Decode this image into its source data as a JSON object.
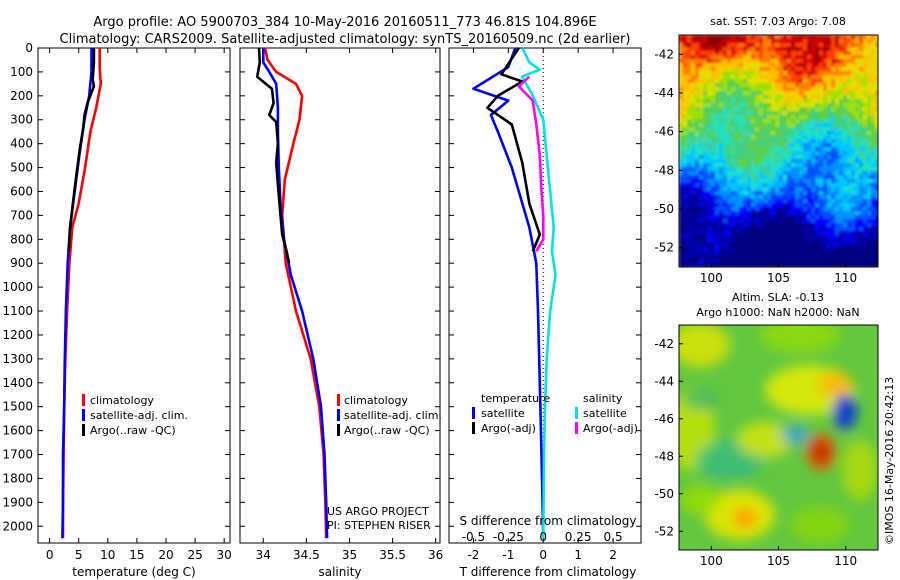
{
  "titles": {
    "line1": "Argo profile: AO 5900703_384 10-May-2016 20160511_773 46.81S 104.896E",
    "line2": "Climatology: CARS2009. Satellite-adjusted climatology: synTS_20160509.nc (2d earlier)"
  },
  "footer_vertical": "©IMOS 16-May-2016 20:42:13",
  "credit": {
    "line1": "US ARGO PROJECT",
    "line2": "PI: STEPHEN RISER"
  },
  "colors": {
    "climatology": "#ff0000",
    "satellite": "#0000ff",
    "argo": "#000000",
    "sat_salinity": "#00e6e6",
    "argo_salinity": "#ff00ff"
  },
  "chart_data": [
    {
      "type": "line",
      "id": "temperature",
      "xlabel": "temperature (deg C)",
      "ylabel": "",
      "xlim": [
        -2,
        31
      ],
      "ylim": [
        2070,
        0
      ],
      "y_reversed": true,
      "xticks": [
        0,
        5,
        10,
        15,
        20,
        25,
        30
      ],
      "xtick_labels": [
        "0",
        "5",
        "10",
        "15",
        "20",
        "25",
        "30"
      ],
      "yticks": [
        0,
        100,
        200,
        300,
        400,
        500,
        600,
        700,
        800,
        900,
        1000,
        1100,
        1200,
        1300,
        1400,
        1500,
        1600,
        1700,
        1800,
        1900,
        2000
      ],
      "ytick_labels": [
        "0",
        "100",
        "200",
        "300",
        "400",
        "500",
        "600",
        "700",
        "800",
        "900",
        "1000",
        "1100",
        "1200",
        "1300",
        "1400",
        "1500",
        "1600",
        "1700",
        "1800",
        "1900",
        "2000"
      ],
      "legend": [
        "climatology",
        "satellite-adj. clim.",
        "Argo(..raw -QC)"
      ],
      "series": [
        {
          "name": "climatology",
          "color": "#ff0000",
          "points": [
            [
              8.6,
              0
            ],
            [
              8.6,
              80
            ],
            [
              8.8,
              150
            ],
            [
              8,
              250
            ],
            [
              7,
              350
            ],
            [
              6.1,
              500
            ],
            [
              5,
              650
            ],
            [
              3.9,
              750
            ],
            [
              3.4,
              900
            ],
            [
              3.0,
              1100
            ],
            [
              2.7,
              1300
            ],
            [
              2.5,
              1500
            ],
            [
              2.4,
              1700
            ],
            [
              2.3,
              1900
            ],
            [
              2.3,
              2050
            ]
          ]
        },
        {
          "name": "satellite-adj. clim.",
          "color": "#0000ff",
          "points": [
            [
              7.2,
              0
            ],
            [
              7.2,
              100
            ],
            [
              6.8,
              200
            ],
            [
              6,
              300
            ],
            [
              5.1,
              450
            ],
            [
              4.3,
              600
            ],
            [
              3.5,
              750
            ],
            [
              3.1,
              900
            ],
            [
              2.8,
              1100
            ],
            [
              2.6,
              1300
            ],
            [
              2.5,
              1500
            ],
            [
              2.3,
              1700
            ],
            [
              2.3,
              1900
            ],
            [
              2.2,
              2050
            ]
          ]
        },
        {
          "name": "Argo(..raw -QC)",
          "color": "#000000",
          "points": [
            [
              7.6,
              0
            ],
            [
              7.6,
              60
            ],
            [
              7.4,
              130
            ],
            [
              7.6,
              160
            ],
            [
              6.5,
              230
            ],
            [
              6.0,
              280
            ],
            [
              5.8,
              330
            ],
            [
              5.2,
              420
            ],
            [
              4.5,
              550
            ],
            [
              4.0,
              650
            ],
            [
              3.5,
              760
            ],
            [
              3.3,
              850
            ]
          ]
        }
      ]
    },
    {
      "type": "line",
      "id": "salinity",
      "xlabel": "salinity",
      "ylabel": "",
      "xlim": [
        33.73,
        36.05
      ],
      "ylim": [
        2070,
        0
      ],
      "y_reversed": true,
      "xticks": [
        34,
        34.5,
        35,
        35.5,
        36
      ],
      "xtick_labels": [
        "34",
        "34.5",
        "35",
        "35.5",
        "36"
      ],
      "legend": [
        "climatology",
        "satellite-adj. clim.",
        "Argo(..raw -QC)"
      ],
      "series": [
        {
          "name": "climatology",
          "color": "#ff0000",
          "points": [
            [
              34.02,
              0
            ],
            [
              34.05,
              50
            ],
            [
              34.15,
              100
            ],
            [
              34.38,
              150
            ],
            [
              34.45,
              200
            ],
            [
              34.42,
              300
            ],
            [
              34.35,
              400
            ],
            [
              34.25,
              550
            ],
            [
              34.22,
              700
            ],
            [
              34.26,
              900
            ],
            [
              34.38,
              1100
            ],
            [
              34.55,
              1300
            ],
            [
              34.65,
              1500
            ],
            [
              34.7,
              1700
            ],
            [
              34.72,
              1900
            ],
            [
              34.73,
              2050
            ]
          ]
        },
        {
          "name": "satellite-adj. clim.",
          "color": "#0000ff",
          "points": [
            [
              34.0,
              0
            ],
            [
              34.0,
              60
            ],
            [
              34.07,
              100
            ],
            [
              34.15,
              150
            ],
            [
              34.17,
              250
            ],
            [
              34.17,
              350
            ],
            [
              34.18,
              500
            ],
            [
              34.2,
              650
            ],
            [
              34.24,
              800
            ],
            [
              34.32,
              950
            ],
            [
              34.45,
              1100
            ],
            [
              34.58,
              1300
            ],
            [
              34.67,
              1500
            ],
            [
              34.71,
              1700
            ],
            [
              34.73,
              1900
            ],
            [
              34.74,
              2050
            ]
          ]
        },
        {
          "name": "Argo(..raw -QC)",
          "color": "#000000",
          "points": [
            [
              33.95,
              0
            ],
            [
              33.96,
              60
            ],
            [
              33.93,
              120
            ],
            [
              34.1,
              170
            ],
            [
              34.12,
              230
            ],
            [
              34.07,
              280
            ],
            [
              34.15,
              310
            ],
            [
              34.17,
              400
            ],
            [
              34.15,
              480
            ],
            [
              34.17,
              570
            ],
            [
              34.2,
              700
            ],
            [
              34.22,
              780
            ],
            [
              34.27,
              850
            ],
            [
              34.3,
              900
            ]
          ]
        }
      ]
    },
    {
      "type": "line",
      "id": "difference",
      "xlabel": "T difference from climatology",
      "xlabel_top": "S difference from climatology",
      "xlim": [
        -2.7,
        2.8
      ],
      "ylim": [
        2070,
        0
      ],
      "y_reversed": true,
      "xticks": [
        -2,
        -1,
        0,
        1,
        2
      ],
      "xtick_labels": [
        "-2",
        "-1",
        "0",
        "1",
        "2"
      ],
      "s_xticks": [
        -0.5,
        -0.25,
        0,
        0.25,
        0.5
      ],
      "s_xtick_labels": [
        "-0.5",
        "-0.25",
        "0",
        "0.25",
        "0.5"
      ],
      "legend_titles": [
        "temperature",
        "salinity"
      ],
      "legend": [
        "satellite",
        "Argo(-adj)",
        "satellite",
        "Argo(-adj)"
      ],
      "series": [
        {
          "name": "satellite",
          "color": "#0000ff",
          "points": [
            [
              -0.8,
              0
            ],
            [
              -1.0,
              80
            ],
            [
              -2.0,
              170
            ],
            [
              -1.0,
              220
            ],
            [
              -1.5,
              280
            ],
            [
              -1.3,
              350
            ],
            [
              -0.9,
              500
            ],
            [
              -0.6,
              650
            ],
            [
              -0.4,
              750
            ],
            [
              -0.2,
              900
            ],
            [
              -0.15,
              1100
            ],
            [
              -0.1,
              1400
            ],
            [
              -0.05,
              1700
            ],
            [
              0.0,
              2050
            ]
          ]
        },
        {
          "name": "Argo(-adj)",
          "color": "#000000",
          "points": [
            [
              -0.7,
              0
            ],
            [
              -1.2,
              110
            ],
            [
              -0.6,
              140
            ],
            [
              -1.3,
              200
            ],
            [
              -1.6,
              250
            ],
            [
              -0.9,
              320
            ],
            [
              -0.6,
              480
            ],
            [
              -0.4,
              650
            ],
            [
              -0.1,
              780
            ],
            [
              -0.3,
              850
            ]
          ]
        },
        {
          "name": "satellite",
          "color": "#00e6e6",
          "points": [
            [
              -0.6,
              0
            ],
            [
              -0.4,
              60
            ],
            [
              -0.1,
              90
            ],
            [
              -0.6,
              120
            ],
            [
              -0.3,
              200
            ],
            [
              0,
              300
            ],
            [
              0.1,
              450
            ],
            [
              0.2,
              600
            ],
            [
              0.3,
              750
            ],
            [
              0.25,
              850
            ],
            [
              0.35,
              950
            ],
            [
              0.2,
              1100
            ],
            [
              0.1,
              1300
            ],
            [
              0.05,
              1500
            ],
            [
              0.02,
              1700
            ],
            [
              0,
              2050
            ]
          ]
        },
        {
          "name": "Argo(-adj)",
          "color": "#ff00ff",
          "points": [
            [
              -0.4,
              120
            ],
            [
              -0.7,
              160
            ],
            [
              -0.3,
              220
            ],
            [
              -0.2,
              320
            ],
            [
              -0.1,
              450
            ],
            [
              -0.05,
              600
            ],
            [
              0,
              700
            ],
            [
              0,
              800
            ],
            [
              -0.2,
              850
            ]
          ]
        }
      ]
    },
    {
      "type": "heatmap",
      "id": "sst_map",
      "title": "sat. SST: 7.03 Argo: 7.08",
      "xlim": [
        97.6,
        112.4
      ],
      "ylim": [
        -53,
        -41
      ],
      "xticks": [
        100,
        105,
        110
      ],
      "xtick_labels": [
        "100",
        "105",
        "110"
      ],
      "yticks": [
        -42,
        -44,
        -46,
        -48,
        -50,
        -52
      ],
      "ytick_labels": [
        "-42",
        "-44",
        "-46",
        "-48",
        "-50",
        "-52"
      ]
    },
    {
      "type": "heatmap",
      "id": "sla_map",
      "title": "Altim. SLA: -0.13",
      "subtitle": "Argo h1000: NaN h2000: NaN",
      "xlim": [
        97.6,
        112.4
      ],
      "ylim": [
        -53,
        -41
      ],
      "xticks": [
        100,
        105,
        110
      ],
      "xtick_labels": [
        "100",
        "105",
        "110"
      ],
      "yticks": [
        -42,
        -44,
        -46,
        -48,
        -50,
        -52
      ],
      "ytick_labels": [
        "-42",
        "-44",
        "-46",
        "-48",
        "-50",
        "-52"
      ]
    }
  ]
}
